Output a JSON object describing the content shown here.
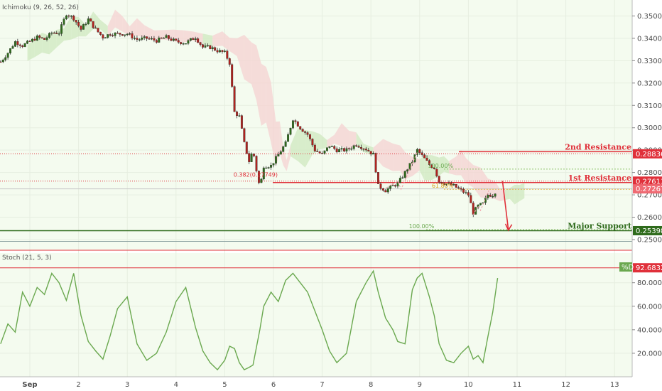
{
  "chart_data": [
    {
      "type": "candlestick",
      "indicator_label": "Ichimoku (9, 26, 52, 26)",
      "y_ticks": [
        "0.35000",
        "0.34000",
        "0.33000",
        "0.32000",
        "0.31000",
        "0.30000",
        "0.29000",
        "0.28000",
        "0.27000",
        "0.26000",
        "0.25000"
      ],
      "ylim": [
        0.2465,
        0.3565
      ],
      "x_ticks": [
        "Sep",
        "2",
        "3",
        "4",
        "5",
        "6",
        "7",
        "8",
        "9",
        "10",
        "11",
        "12",
        "13"
      ],
      "x_tick_values": [
        0,
        1,
        2,
        3,
        4,
        5,
        6,
        7,
        8,
        9,
        10,
        11,
        12
      ],
      "price_labels": [
        {
          "text": "0.28836",
          "value": 0.28836,
          "color": "#e0303a"
        },
        {
          "text": "0.27613",
          "value": 0.27613,
          "color": "#e0303a"
        },
        {
          "text": "0.27267",
          "value": 0.27267,
          "color": "#ef6a73"
        },
        {
          "text": "0.25398",
          "value": 0.25398,
          "color": "#2f6b1c"
        }
      ],
      "levels": [
        {
          "name": "2nd Resistance",
          "value": 0.28836,
          "color": "#e0303a"
        },
        {
          "name": "1st Resistance",
          "value": 0.27613,
          "color": "#e0303a"
        },
        {
          "name": "Major Support",
          "value": 0.25398,
          "color": "#2f6b1c"
        }
      ],
      "fib_labels": [
        {
          "text": "0.382(0.27749)",
          "x": 4.18,
          "y": 0.27749,
          "color": "#e0303a"
        },
        {
          "text": "100.00%",
          "x": 8.17,
          "y": 0.2815,
          "color": "#6aa84f"
        },
        {
          "text": "61.80%",
          "x": 8.25,
          "y": 0.2725,
          "color": "#d4a017"
        },
        {
          "text": "100.00%",
          "x": 7.78,
          "y": 0.2545,
          "color": "#6aa84f"
        }
      ],
      "price_path": [
        [
          -0.6,
          0.3295
        ],
        [
          -0.45,
          0.3335
        ],
        [
          -0.3,
          0.3385
        ],
        [
          -0.15,
          0.3368
        ],
        [
          0.0,
          0.3385
        ],
        [
          0.15,
          0.3405
        ],
        [
          0.3,
          0.3395
        ],
        [
          0.45,
          0.3425
        ],
        [
          0.6,
          0.3425
        ],
        [
          0.75,
          0.351
        ],
        [
          0.9,
          0.349
        ],
        [
          1.05,
          0.344
        ],
        [
          1.2,
          0.3485
        ],
        [
          1.35,
          0.344
        ],
        [
          1.5,
          0.3405
        ],
        [
          1.65,
          0.342
        ],
        [
          1.8,
          0.342
        ],
        [
          2.0,
          0.342
        ],
        [
          2.2,
          0.3395
        ],
        [
          2.4,
          0.34
        ],
        [
          2.6,
          0.339
        ],
        [
          2.8,
          0.3405
        ],
        [
          3.0,
          0.3385
        ],
        [
          3.2,
          0.338
        ],
        [
          3.4,
          0.3405
        ],
        [
          3.55,
          0.336
        ],
        [
          3.7,
          0.336
        ],
        [
          3.85,
          0.3345
        ],
        [
          4.0,
          0.3335
        ],
        [
          4.1,
          0.329
        ],
        [
          4.2,
          0.307
        ],
        [
          4.3,
          0.305
        ],
        [
          4.4,
          0.293
        ],
        [
          4.5,
          0.285
        ],
        [
          4.58,
          0.29
        ],
        [
          4.65,
          0.281
        ],
        [
          4.72,
          0.273
        ],
        [
          4.8,
          0.283
        ],
        [
          4.95,
          0.283
        ],
        [
          5.1,
          0.288
        ],
        [
          5.25,
          0.293
        ],
        [
          5.4,
          0.304
        ],
        [
          5.55,
          0.3
        ],
        [
          5.7,
          0.297
        ],
        [
          5.85,
          0.29
        ],
        [
          6.0,
          0.288
        ],
        [
          6.15,
          0.292
        ],
        [
          6.3,
          0.29
        ],
        [
          6.5,
          0.29
        ],
        [
          6.7,
          0.2925
        ],
        [
          6.9,
          0.2905
        ],
        [
          7.05,
          0.288
        ],
        [
          7.15,
          0.274
        ],
        [
          7.3,
          0.272
        ],
        [
          7.45,
          0.274
        ],
        [
          7.55,
          0.275
        ],
        [
          7.7,
          0.28
        ],
        [
          7.85,
          0.285
        ],
        [
          7.95,
          0.29
        ],
        [
          8.05,
          0.2875
        ],
        [
          8.2,
          0.2835
        ],
        [
          8.3,
          0.282
        ],
        [
          8.4,
          0.276
        ],
        [
          8.55,
          0.275
        ],
        [
          8.7,
          0.274
        ],
        [
          8.85,
          0.272
        ],
        [
          9.0,
          0.27
        ],
        [
          9.1,
          0.262
        ],
        [
          9.2,
          0.265
        ],
        [
          9.3,
          0.266
        ],
        [
          9.4,
          0.27
        ],
        [
          9.5,
          0.27
        ],
        [
          9.6,
          0.2727
        ]
      ],
      "stoch_label": "Stoch (21, 5, 3)",
      "stoch_ticks": [
        "80.0000",
        "60.0000",
        "40.0000",
        "20.0000"
      ],
      "stoch_ylim": [
        0,
        104
      ],
      "stoch_red_label": "92.6832",
      "stoch_red_value": 92.6832,
      "stoch_legend": "%D",
      "stoch_series": [
        [
          -0.6,
          28
        ],
        [
          -0.45,
          45
        ],
        [
          -0.3,
          38
        ],
        [
          -0.15,
          72
        ],
        [
          0.0,
          60
        ],
        [
          0.15,
          76
        ],
        [
          0.3,
          70
        ],
        [
          0.45,
          88
        ],
        [
          0.6,
          80
        ],
        [
          0.75,
          65
        ],
        [
          0.9,
          88
        ],
        [
          1.05,
          52
        ],
        [
          1.2,
          30
        ],
        [
          1.35,
          22
        ],
        [
          1.5,
          15
        ],
        [
          1.65,
          35
        ],
        [
          1.8,
          58
        ],
        [
          2.0,
          68
        ],
        [
          2.2,
          28
        ],
        [
          2.4,
          14
        ],
        [
          2.6,
          20
        ],
        [
          2.8,
          38
        ],
        [
          3.0,
          64
        ],
        [
          3.2,
          76
        ],
        [
          3.4,
          42
        ],
        [
          3.55,
          22
        ],
        [
          3.7,
          12
        ],
        [
          3.85,
          6
        ],
        [
          4.0,
          14
        ],
        [
          4.1,
          26
        ],
        [
          4.2,
          24
        ],
        [
          4.3,
          12
        ],
        [
          4.4,
          6
        ],
        [
          4.5,
          8
        ],
        [
          4.58,
          10
        ],
        [
          4.65,
          25
        ],
        [
          4.72,
          40
        ],
        [
          4.8,
          60
        ],
        [
          4.95,
          72
        ],
        [
          5.1,
          64
        ],
        [
          5.25,
          82
        ],
        [
          5.4,
          88
        ],
        [
          5.55,
          80
        ],
        [
          5.7,
          72
        ],
        [
          5.85,
          56
        ],
        [
          6.0,
          40
        ],
        [
          6.15,
          22
        ],
        [
          6.3,
          12
        ],
        [
          6.5,
          20
        ],
        [
          6.7,
          64
        ],
        [
          6.9,
          80
        ],
        [
          7.05,
          90
        ],
        [
          7.15,
          72
        ],
        [
          7.3,
          50
        ],
        [
          7.45,
          40
        ],
        [
          7.55,
          30
        ],
        [
          7.7,
          28
        ],
        [
          7.85,
          74
        ],
        [
          7.95,
          84
        ],
        [
          8.05,
          88
        ],
        [
          8.2,
          68
        ],
        [
          8.3,
          52
        ],
        [
          8.4,
          28
        ],
        [
          8.55,
          14
        ],
        [
          8.7,
          12
        ],
        [
          8.85,
          20
        ],
        [
          9.0,
          26
        ],
        [
          9.1,
          15
        ],
        [
          9.2,
          18
        ],
        [
          9.3,
          12
        ],
        [
          9.4,
          34
        ],
        [
          9.5,
          55
        ],
        [
          9.6,
          84
        ]
      ]
    }
  ]
}
